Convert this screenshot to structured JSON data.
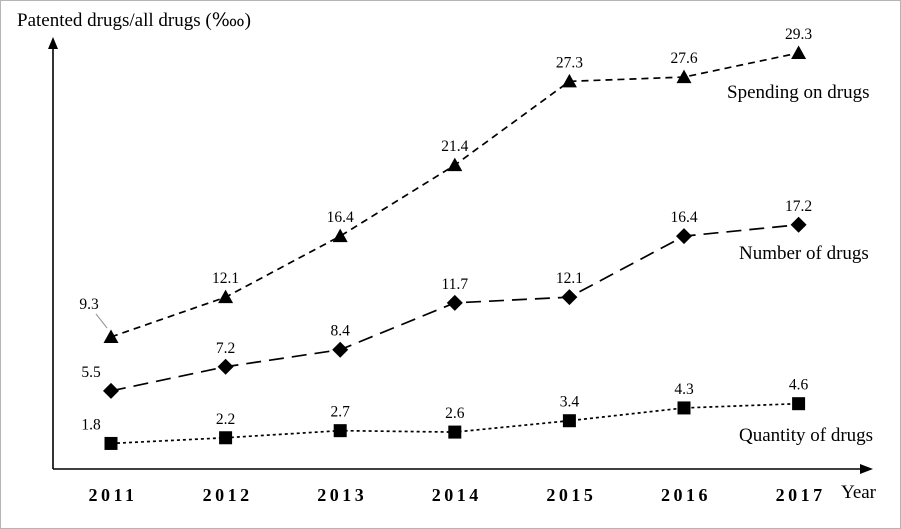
{
  "chart_data": {
    "type": "line",
    "title": "",
    "ylabel": "Patented drugs/all drugs (‱)",
    "xlabel": "Year",
    "categories": [
      "2011",
      "2012",
      "2013",
      "2014",
      "2015",
      "2016",
      "2017"
    ],
    "series": [
      {
        "name": "Spending on drugs",
        "marker": "triangle",
        "dash": "7 5",
        "values": [
          9.3,
          12.1,
          16.4,
          21.4,
          27.3,
          27.6,
          29.3
        ]
      },
      {
        "name": "Number of drugs",
        "marker": "diamond",
        "dash": "15 8",
        "values": [
          5.5,
          7.2,
          8.4,
          11.7,
          12.1,
          16.4,
          17.2
        ]
      },
      {
        "name": "Quantity of drugs",
        "marker": "square",
        "dash": "3 3",
        "values": [
          1.8,
          2.2,
          2.7,
          2.6,
          3.4,
          4.3,
          4.6
        ]
      }
    ],
    "ylim": [
      0,
      31
    ],
    "grid": false,
    "legend_position": "right-inline",
    "colors": {
      "line": "#000000",
      "marker": "#000000",
      "text": "#000000",
      "leader": "#999999"
    }
  }
}
